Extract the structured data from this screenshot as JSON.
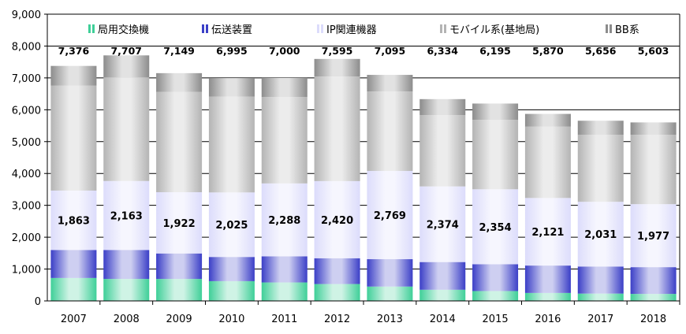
{
  "chart_data": {
    "type": "bar",
    "stacked": true,
    "categories": [
      "2007",
      "2008",
      "2009",
      "2010",
      "2011",
      "2012",
      "2013",
      "2014",
      "2015",
      "2016",
      "2017",
      "2018"
    ],
    "series": [
      {
        "name": "局用交換機",
        "color": "#3fcf98",
        "values": [
          720,
          690,
          690,
          620,
          580,
          530,
          450,
          350,
          310,
          250,
          230,
          220
        ]
      },
      {
        "name": "伝送装置",
        "color": "#3b3fc7",
        "values": [
          880,
          910,
          800,
          760,
          820,
          810,
          860,
          870,
          840,
          860,
          850,
          840
        ]
      },
      {
        "name": "IP関連機器",
        "color": "#dcdcfb",
        "values": [
          1863,
          2163,
          1922,
          2025,
          2288,
          2420,
          2769,
          2374,
          2354,
          2121,
          2031,
          1977
        ]
      },
      {
        "name": "モバイル系(基地局)",
        "color": "#b4b4b4",
        "values": [
          3293,
          3254,
          3147,
          3010,
          2712,
          3285,
          2496,
          2240,
          2181,
          2239,
          2105,
          2176
        ]
      },
      {
        "name": "BB系",
        "color": "#8c8c8c",
        "values": [
          620,
          690,
          590,
          580,
          600,
          550,
          520,
          500,
          510,
          400,
          440,
          390
        ]
      }
    ],
    "totals": [
      "7,376",
      "7,707",
      "7,149",
      "6,995",
      "7,000",
      "7,595",
      "7,095",
      "6,334",
      "6,195",
      "5,870",
      "5,656",
      "5,603"
    ],
    "ip_labels": [
      "1,863",
      "2,163",
      "1,922",
      "2,025",
      "2,288",
      "2,420",
      "2,769",
      "2,374",
      "2,354",
      "2,121",
      "2,031",
      "1,977"
    ],
    "y_ticks": [
      "0",
      "1,000",
      "2,000",
      "3,000",
      "4,000",
      "5,000",
      "6,000",
      "7,000",
      "8,000",
      "9,000"
    ],
    "ylim": [
      0,
      9000
    ],
    "grid": true,
    "legend_position": "top"
  }
}
